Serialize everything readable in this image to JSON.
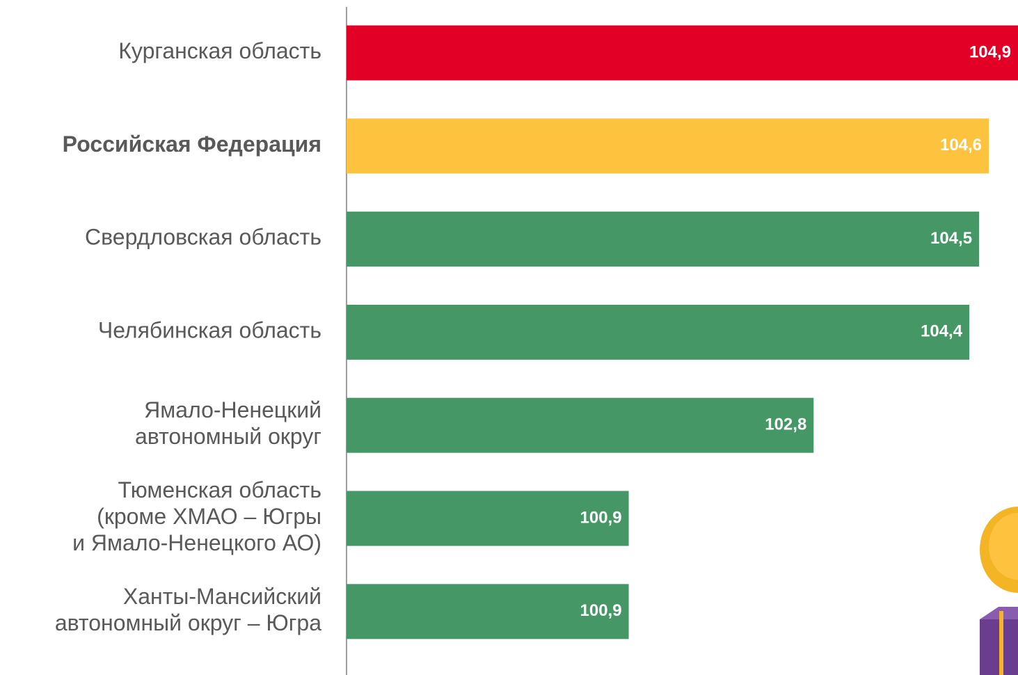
{
  "chart_data": {
    "type": "barh",
    "categories": [
      "Курганская область",
      "Российская Федерация",
      "Свердловская область",
      "Челябинская область",
      "Ямало-Ненецкий\nавтономный округ",
      "Тюменская область\n(кроме ХМАО – Югры\nи Ямало-Ненецкого АО)",
      "Ханты-Мансийский\nавтономный округ – Югра"
    ],
    "values": [
      104.9,
      104.6,
      104.5,
      104.4,
      102.8,
      100.9,
      100.9
    ],
    "value_labels": [
      "104,9",
      "104,6",
      "104,5",
      "104,4",
      "102,8",
      "100,9",
      "100,9"
    ],
    "colors": [
      "#e20026",
      "#fdc33f",
      "#459865",
      "#459865",
      "#459865",
      "#459865",
      "#459865"
    ],
    "bold": [
      false,
      true,
      false,
      false,
      false,
      false,
      false
    ],
    "xlim": [
      98,
      104.9
    ]
  }
}
